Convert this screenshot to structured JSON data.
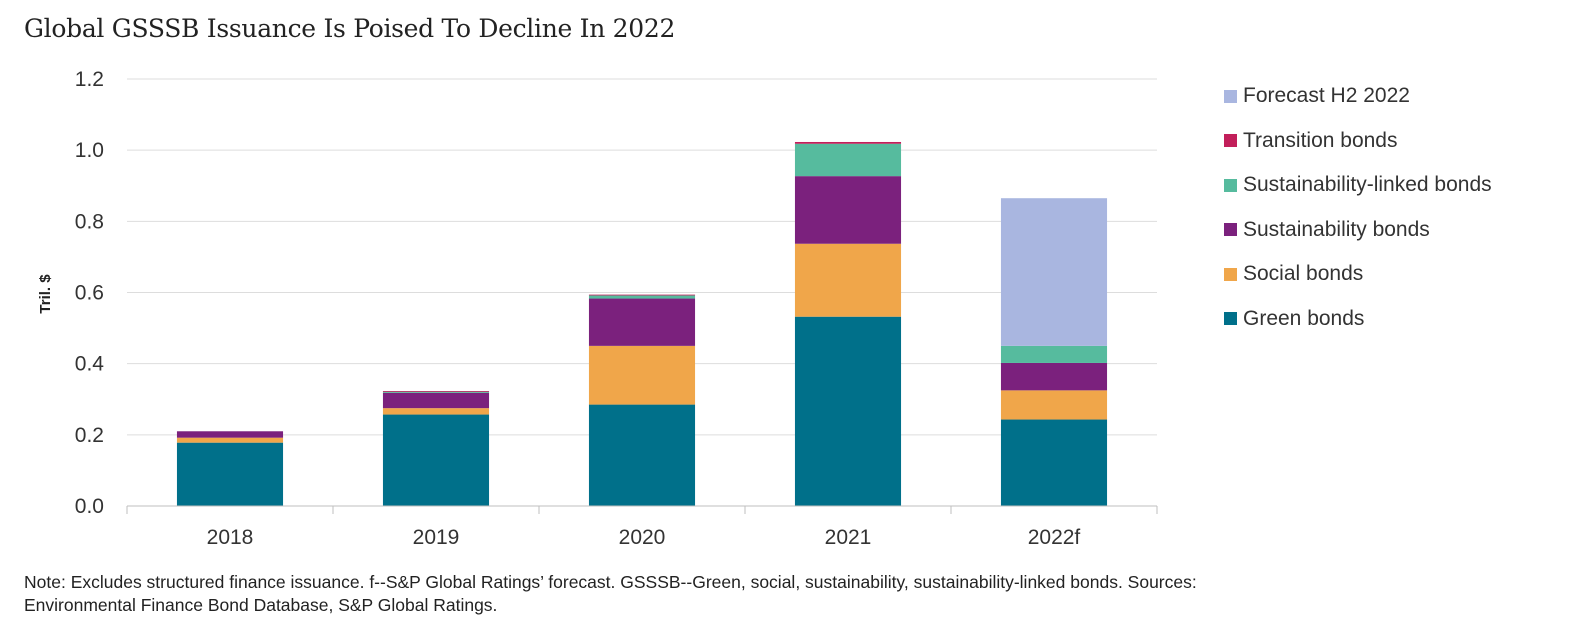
{
  "chart_data": {
    "type": "bar",
    "stacked": true,
    "title": "Global GSSSB Issuance Is Poised To Decline In 2022",
    "ylabel": "Tril. $",
    "xlabel": "",
    "ylim": [
      0,
      1.2
    ],
    "yticks": [
      "0.0",
      "0.2",
      "0.4",
      "0.6",
      "0.8",
      "1.0",
      "1.2"
    ],
    "grid": true,
    "legend_position": "right",
    "categories": [
      "2018",
      "2019",
      "2020",
      "2021",
      "2022f"
    ],
    "series": [
      {
        "name": "Green bonds",
        "color": "#00708a",
        "values": [
          0.178,
          0.257,
          0.285,
          0.532,
          0.243
        ]
      },
      {
        "name": "Social bonds",
        "color": "#f0a64a",
        "values": [
          0.014,
          0.018,
          0.165,
          0.205,
          0.082
        ]
      },
      {
        "name": "Sustainability bonds",
        "color": "#7b217d",
        "values": [
          0.018,
          0.043,
          0.133,
          0.19,
          0.077
        ]
      },
      {
        "name": "Sustainability-linked bonds",
        "color": "#56bb9e",
        "values": [
          0.0,
          0.004,
          0.009,
          0.091,
          0.048
        ]
      },
      {
        "name": "Transition bonds",
        "color": "#c21f5a",
        "values": [
          0.0,
          0.001,
          0.002,
          0.005,
          0.0
        ]
      },
      {
        "name": "Forecast H2 2022",
        "color": "#a9b6e0",
        "values": [
          0,
          0,
          0,
          0,
          0.415
        ]
      }
    ],
    "gridline_color": "#dddddd"
  },
  "note": "Note: Excludes structured finance issuance. f--S&P Global Ratings’ forecast. GSSSB--Green, social, sustainability, sustainability-linked bonds. Sources: Environmental Finance Bond Database, S&P Global Ratings.",
  "legend_order": [
    "Forecast H2 2022",
    "Transition bonds",
    "Sustainability-linked bonds",
    "Sustainability bonds",
    "Social bonds",
    "Green bonds"
  ]
}
